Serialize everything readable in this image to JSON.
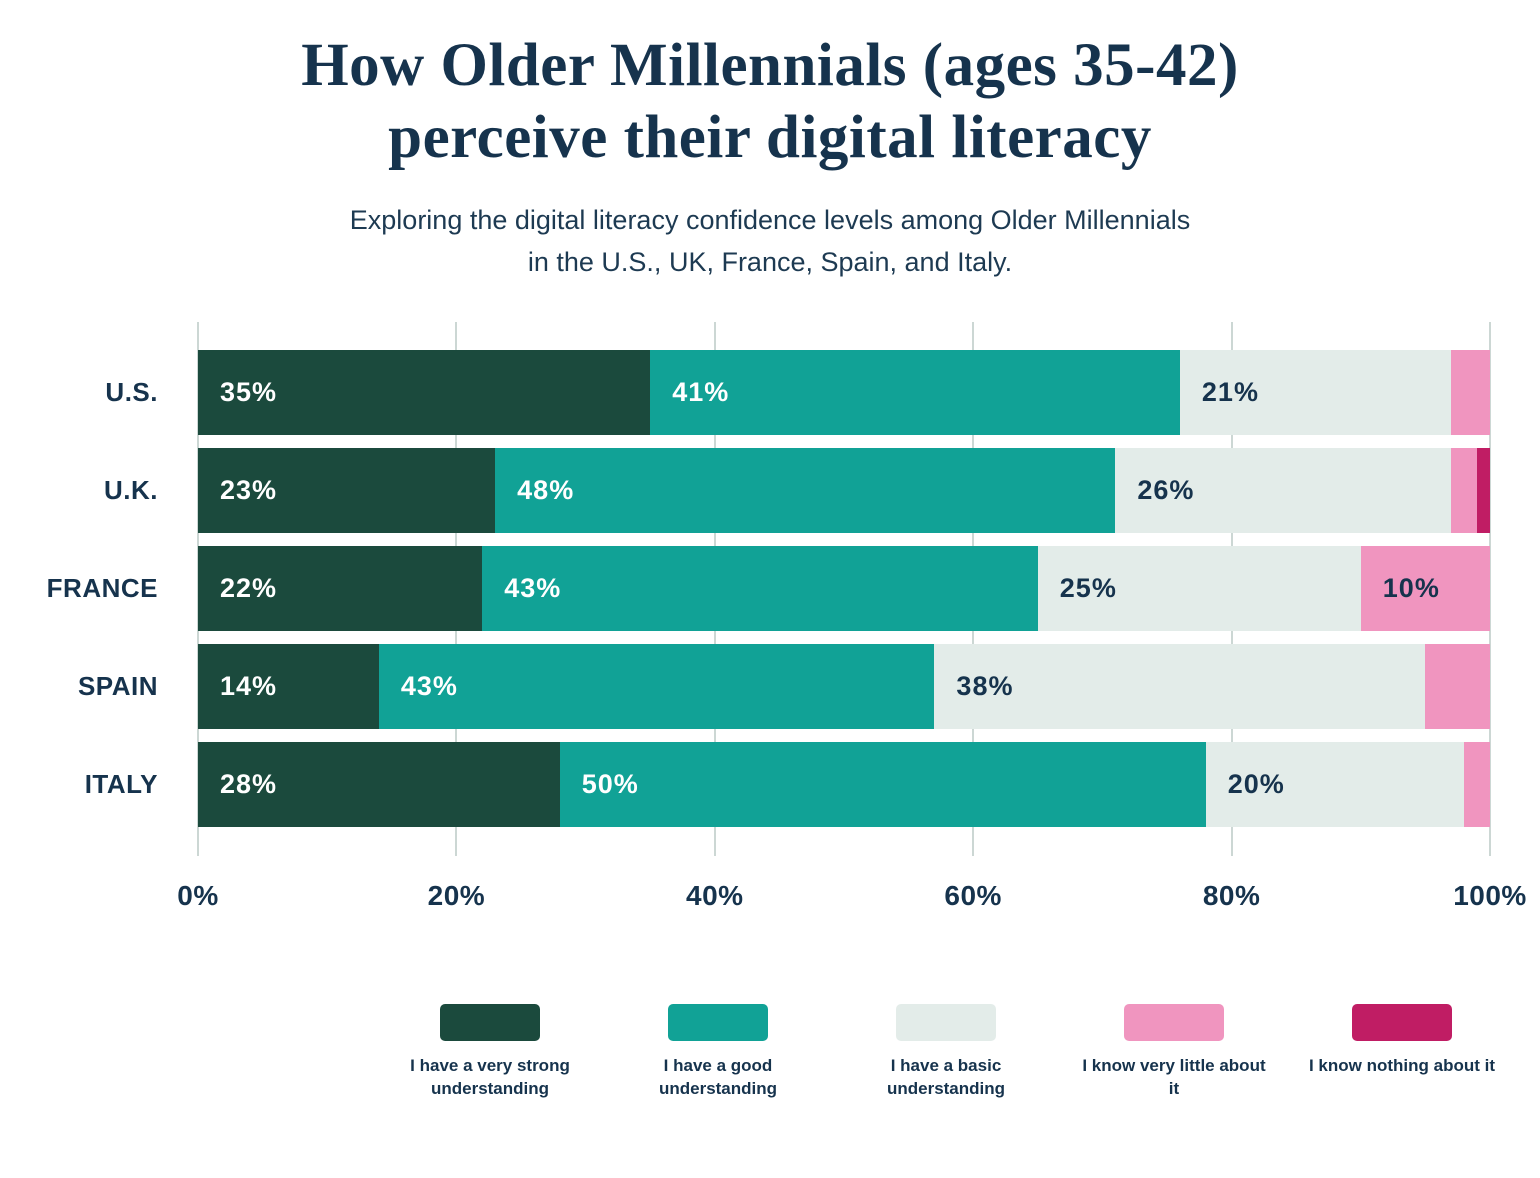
{
  "title": {
    "line1": "How Older Millennials (ages 35-42)",
    "line2": "perceive their digital literacy"
  },
  "subtitle": {
    "line1": "Exploring the digital literacy confidence levels among Older Millennials",
    "line2": "in the U.S., UK, France, Spain, and Italy."
  },
  "chart_data": {
    "type": "bar",
    "orientation": "horizontal",
    "stacked": true,
    "title": "How Older Millennials (ages 35-42) perceive their digital literacy",
    "categories": [
      "U.S.",
      "U.K.",
      "FRANCE",
      "SPAIN",
      "ITALY"
    ],
    "series": [
      {
        "name": "I have a very strong understanding",
        "color": "#1b4a3d",
        "label_color": "#ffffff",
        "values": [
          35,
          23,
          22,
          14,
          28
        ]
      },
      {
        "name": "I have a good understanding",
        "color": "#11a296",
        "label_color": "#ffffff",
        "values": [
          41,
          48,
          43,
          43,
          50
        ]
      },
      {
        "name": "I have a basic understanding",
        "color": "#e3ece9",
        "label_color": "#16334d",
        "values": [
          21,
          26,
          25,
          38,
          20
        ]
      },
      {
        "name": "I know very little about it",
        "color": "#f095bf",
        "label_color": "#16334d",
        "values": [
          3,
          2,
          10,
          5,
          2
        ]
      },
      {
        "name": "I know nothing about it",
        "color": "#c01d64",
        "label_color": "#ffffff",
        "values": [
          0,
          1,
          0,
          0,
          0
        ]
      }
    ],
    "x_ticks": [
      "0%",
      "20%",
      "40%",
      "60%",
      "80%",
      "100%"
    ],
    "xlim": [
      0,
      100
    ],
    "value_suffix": "%",
    "label_min_value": 10,
    "grid": true,
    "legend_position": "bottom",
    "text_color": "#16334d",
    "gridline_color": "#ccd7d4"
  }
}
